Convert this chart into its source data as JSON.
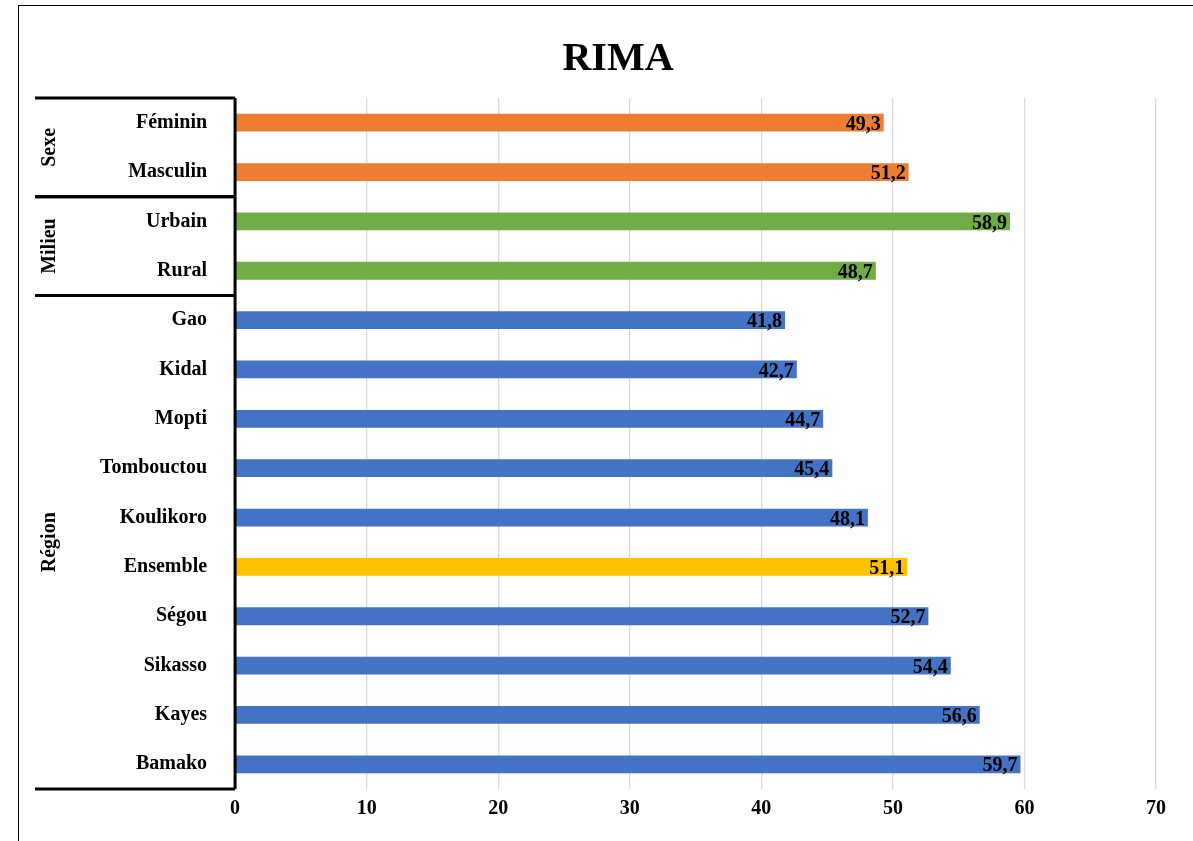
{
  "chart_data": {
    "type": "bar",
    "orientation": "horizontal",
    "title": "RIMA",
    "categories": [
      "Féminin",
      "Masculin",
      "Urbain",
      "Rural",
      "Gao",
      "Kidal",
      "Mopti",
      "Tombouctou",
      "Koulikoro",
      "Ensemble",
      "Ségou",
      "Sikasso",
      "Kayes",
      "Bamako"
    ],
    "values": [
      49.3,
      51.2,
      58.9,
      48.7,
      41.8,
      42.7,
      44.7,
      45.4,
      48.1,
      51.1,
      52.7,
      54.4,
      56.6,
      59.7
    ],
    "value_labels": [
      "49,3",
      "51,2",
      "58,9",
      "48,7",
      "41,8",
      "42,7",
      "44,7",
      "45,4",
      "48,1",
      "51,1",
      "52,7",
      "54,4",
      "56,6",
      "59,7"
    ],
    "colors": [
      "#ed7d31",
      "#ed7d31",
      "#70ad47",
      "#70ad47",
      "#4472c4",
      "#4472c4",
      "#4472c4",
      "#4472c4",
      "#4472c4",
      "#ffc000",
      "#4472c4",
      "#4472c4",
      "#4472c4",
      "#4472c4"
    ],
    "xlim": [
      0,
      70
    ],
    "xticks": [
      0,
      10,
      20,
      30,
      40,
      50,
      60,
      70
    ],
    "grid": "x",
    "legend": false,
    "annotations": [
      "Sexe",
      "Milieu",
      "Région"
    ]
  }
}
